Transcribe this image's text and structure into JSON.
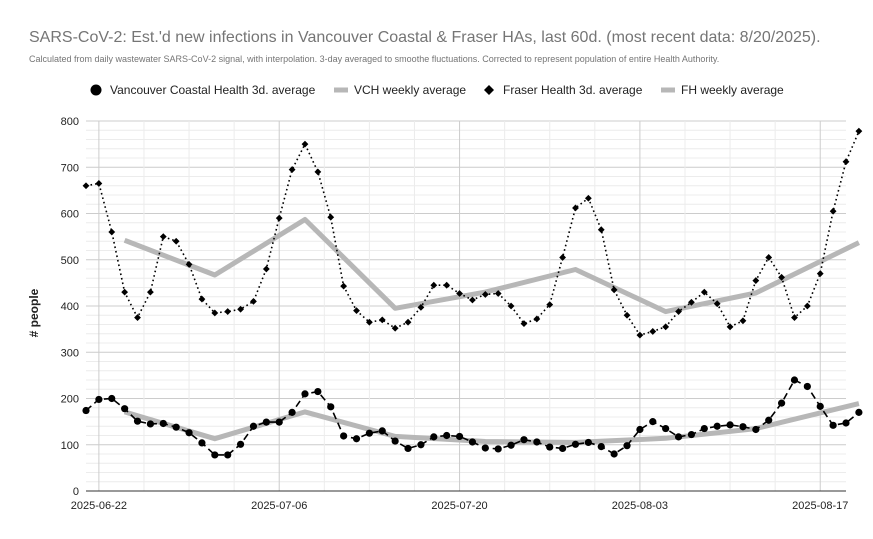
{
  "chart_data": {
    "type": "line",
    "title": "SARS-CoV-2: Est.'d new infections in Vancouver Coastal & Fraser HAs, last 60d. (most recent data: 8/20/2025).",
    "subtitle": "Calculated from daily wastewater SARS-CoV-2 signal, with interpolation. 3-day averaged to smoothe fluctuations. Corrected to represent population of entire Health Authority.",
    "ylabel": "# people",
    "xlabel": "",
    "ylim": [
      0,
      800
    ],
    "yticks": [
      0,
      100,
      200,
      300,
      400,
      500,
      600,
      700,
      800
    ],
    "xlim": [
      "2025-06-21",
      "2025-08-19"
    ],
    "xticks": [
      "2025-06-22",
      "2025-07-06",
      "2025-07-20",
      "2025-08-03",
      "2025-08-17"
    ],
    "legend_position": "top",
    "grid": true,
    "series": [
      {
        "name": "Vancouver Coastal Health 3d. average",
        "style": "dashed-circles",
        "color": "#000000",
        "points": [
          [
            "2025-06-21",
            174
          ],
          [
            "2025-06-22",
            198
          ],
          [
            "2025-06-23",
            200
          ],
          [
            "2025-06-24",
            178
          ],
          [
            "2025-06-25",
            151
          ],
          [
            "2025-06-26",
            145
          ],
          [
            "2025-06-27",
            146
          ],
          [
            "2025-06-28",
            138
          ],
          [
            "2025-06-29",
            126
          ],
          [
            "2025-06-30",
            104
          ],
          [
            "2025-07-01",
            78
          ],
          [
            "2025-07-02",
            78
          ],
          [
            "2025-07-03",
            101
          ],
          [
            "2025-07-04",
            140
          ],
          [
            "2025-07-05",
            149
          ],
          [
            "2025-07-06",
            149
          ],
          [
            "2025-07-07",
            170
          ],
          [
            "2025-07-08",
            210
          ],
          [
            "2025-07-09",
            215
          ],
          [
            "2025-07-10",
            182
          ],
          [
            "2025-07-11",
            119
          ],
          [
            "2025-07-12",
            113
          ],
          [
            "2025-07-13",
            125
          ],
          [
            "2025-07-14",
            130
          ],
          [
            "2025-07-15",
            108
          ],
          [
            "2025-07-16",
            92
          ],
          [
            "2025-07-17",
            100
          ],
          [
            "2025-07-18",
            117
          ],
          [
            "2025-07-19",
            120
          ],
          [
            "2025-07-20",
            118
          ],
          [
            "2025-07-21",
            106
          ],
          [
            "2025-07-22",
            93
          ],
          [
            "2025-07-23",
            91
          ],
          [
            "2025-07-24",
            99
          ],
          [
            "2025-07-25",
            111
          ],
          [
            "2025-07-26",
            106
          ],
          [
            "2025-07-27",
            95
          ],
          [
            "2025-07-28",
            92
          ],
          [
            "2025-07-29",
            101
          ],
          [
            "2025-07-30",
            105
          ],
          [
            "2025-07-31",
            96
          ],
          [
            "2025-08-01",
            80
          ],
          [
            "2025-08-02",
            98
          ],
          [
            "2025-08-03",
            133
          ],
          [
            "2025-08-04",
            150
          ],
          [
            "2025-08-05",
            135
          ],
          [
            "2025-08-06",
            117
          ],
          [
            "2025-08-07",
            122
          ],
          [
            "2025-08-08",
            135
          ],
          [
            "2025-08-09",
            140
          ],
          [
            "2025-08-10",
            143
          ],
          [
            "2025-08-11",
            139
          ],
          [
            "2025-08-12",
            133
          ],
          [
            "2025-08-13",
            153
          ],
          [
            "2025-08-14",
            190
          ],
          [
            "2025-08-15",
            240
          ],
          [
            "2025-08-16",
            226
          ],
          [
            "2025-08-17",
            183
          ],
          [
            "2025-08-18",
            142
          ],
          [
            "2025-08-19",
            147
          ],
          [
            "2025-08-20",
            170
          ]
        ]
      },
      {
        "name": "VCH weekly average",
        "style": "thick-gray",
        "color": "#b7b7b7",
        "points": [
          [
            "2025-06-24",
            171
          ],
          [
            "2025-07-01",
            113
          ],
          [
            "2025-07-08",
            171
          ],
          [
            "2025-07-15",
            118
          ],
          [
            "2025-07-22",
            107
          ],
          [
            "2025-07-29",
            105
          ],
          [
            "2025-08-05",
            114
          ],
          [
            "2025-08-12",
            135
          ],
          [
            "2025-08-20",
            189
          ]
        ]
      },
      {
        "name": "Fraser Health 3d. average",
        "style": "dotted-diamonds",
        "color": "#000000",
        "points": [
          [
            "2025-06-21",
            660
          ],
          [
            "2025-06-22",
            665
          ],
          [
            "2025-06-23",
            560
          ],
          [
            "2025-06-24",
            430
          ],
          [
            "2025-06-25",
            375
          ],
          [
            "2025-06-26",
            430
          ],
          [
            "2025-06-27",
            550
          ],
          [
            "2025-06-28",
            540
          ],
          [
            "2025-06-29",
            490
          ],
          [
            "2025-06-30",
            415
          ],
          [
            "2025-07-01",
            385
          ],
          [
            "2025-07-02",
            388
          ],
          [
            "2025-07-03",
            393
          ],
          [
            "2025-07-04",
            410
          ],
          [
            "2025-07-05",
            480
          ],
          [
            "2025-07-06",
            590
          ],
          [
            "2025-07-07",
            695
          ],
          [
            "2025-07-08",
            750
          ],
          [
            "2025-07-09",
            690
          ],
          [
            "2025-07-10",
            592
          ],
          [
            "2025-07-11",
            443
          ],
          [
            "2025-07-12",
            390
          ],
          [
            "2025-07-13",
            365
          ],
          [
            "2025-07-14",
            370
          ],
          [
            "2025-07-15",
            352
          ],
          [
            "2025-07-16",
            365
          ],
          [
            "2025-07-17",
            397
          ],
          [
            "2025-07-18",
            445
          ],
          [
            "2025-07-19",
            445
          ],
          [
            "2025-07-20",
            427
          ],
          [
            "2025-07-21",
            413
          ],
          [
            "2025-07-22",
            425
          ],
          [
            "2025-07-23",
            427
          ],
          [
            "2025-07-24",
            400
          ],
          [
            "2025-07-25",
            362
          ],
          [
            "2025-07-26",
            372
          ],
          [
            "2025-07-27",
            403
          ],
          [
            "2025-07-28",
            505
          ],
          [
            "2025-07-29",
            612
          ],
          [
            "2025-07-30",
            633
          ],
          [
            "2025-07-31",
            565
          ],
          [
            "2025-08-01",
            435
          ],
          [
            "2025-08-02",
            380
          ],
          [
            "2025-08-03",
            337
          ],
          [
            "2025-08-04",
            345
          ],
          [
            "2025-08-05",
            355
          ],
          [
            "2025-08-06",
            388
          ],
          [
            "2025-08-07",
            408
          ],
          [
            "2025-08-08",
            430
          ],
          [
            "2025-08-09",
            405
          ],
          [
            "2025-08-10",
            355
          ],
          [
            "2025-08-11",
            368
          ],
          [
            "2025-08-12",
            455
          ],
          [
            "2025-08-13",
            505
          ],
          [
            "2025-08-14",
            462
          ],
          [
            "2025-08-15",
            375
          ],
          [
            "2025-08-16",
            400
          ],
          [
            "2025-08-17",
            470
          ],
          [
            "2025-08-18",
            605
          ],
          [
            "2025-08-19",
            712
          ],
          [
            "2025-08-20",
            778
          ]
        ]
      },
      {
        "name": "FH weekly average",
        "style": "thick-gray",
        "color": "#b7b7b7",
        "points": [
          [
            "2025-06-24",
            542
          ],
          [
            "2025-07-01",
            467
          ],
          [
            "2025-07-08",
            587
          ],
          [
            "2025-07-15",
            395
          ],
          [
            "2025-07-22",
            430
          ],
          [
            "2025-07-29",
            479
          ],
          [
            "2025-08-05",
            388
          ],
          [
            "2025-08-12",
            428
          ],
          [
            "2025-08-20",
            537
          ]
        ]
      }
    ]
  }
}
